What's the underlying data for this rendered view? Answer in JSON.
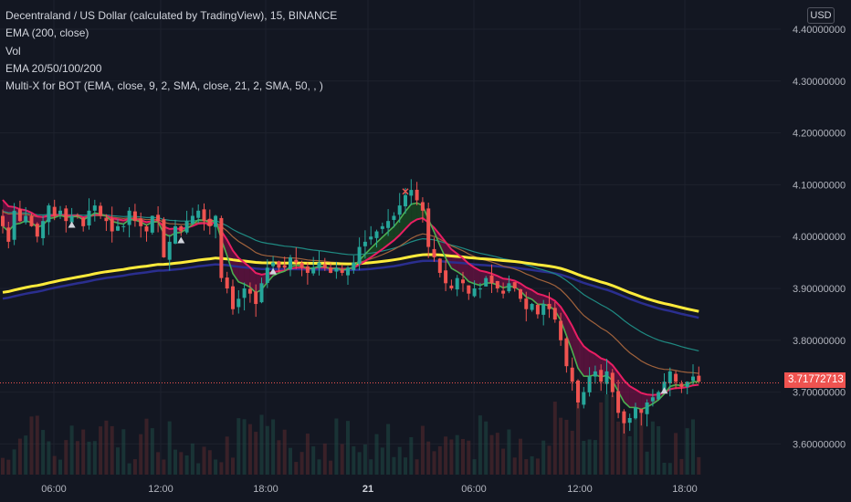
{
  "legend": {
    "title": "Decentraland / US Dollar (calculated by TradingView), 15, BINANCE",
    "ind1": "EMA (200, close)",
    "ind2": "Vol",
    "ind3": "EMA 20/50/100/200",
    "ind4": "Multi-X for BOT (EMA, close, 9, 2, SMA, close, 21, 2, SMA, 50, , )"
  },
  "currency_button": "USD",
  "last_price": "3.71772713",
  "colors": {
    "background": "#131722",
    "grid": "#1e222d",
    "up": "#26a69a",
    "down": "#ef5350",
    "ema200_yellow": "#ffeb3b",
    "ema200_navy": "#2a2e8f",
    "ema100_teal": "#1f8a82",
    "ema50_brown": "#a0623c",
    "ribbon_fast": "#4caf50",
    "ribbon_slow": "#e91e63",
    "text": "#b2b5be"
  },
  "chart_data": {
    "type": "candlestick",
    "symbol": "Decentraland / US Dollar",
    "interval": "15",
    "exchange": "BINANCE",
    "y_ticks": [
      "4.40000000",
      "4.30000000",
      "4.20000000",
      "4.10000000",
      "4.00000000",
      "3.90000000",
      "3.80000000",
      "3.70000000",
      "3.60000000"
    ],
    "x_ticks": [
      "06:00",
      "12:00",
      "18:00",
      "21",
      "06:00",
      "12:00",
      "18:00"
    ],
    "ylim": [
      3.555,
      4.42
    ],
    "last_price": 3.71772713,
    "close": [
      4.02,
      3.99,
      4.05,
      4.03,
      4.04,
      4.02,
      4.0,
      4.03,
      4.06,
      4.04,
      4.05,
      4.03,
      4.04,
      4.04,
      4.02,
      4.05,
      4.06,
      4.04,
      4.03,
      4.01,
      4.02,
      4.02,
      4.05,
      4.03,
      4.02,
      4.01,
      4.04,
      4.03,
      3.96,
      3.99,
      4.02,
      4.01,
      4.03,
      4.04,
      4.05,
      4.03,
      4.02,
      4.04,
      3.92,
      3.9,
      3.86,
      3.88,
      3.9,
      3.89,
      3.87,
      3.91,
      3.94,
      3.95,
      3.94,
      3.94,
      3.96,
      3.95,
      3.94,
      3.93,
      3.94,
      3.95,
      3.94,
      3.93,
      3.94,
      3.93,
      3.94,
      3.95,
      3.98,
      3.99,
      4.0,
      4.01,
      4.02,
      4.03,
      4.04,
      4.06,
      4.08,
      4.09,
      4.07,
      4.05,
      3.98,
      3.96,
      3.93,
      3.91,
      3.9,
      3.92,
      3.91,
      3.89,
      3.9,
      3.9,
      3.92,
      3.91,
      3.9,
      3.89,
      3.91,
      3.9,
      3.88,
      3.86,
      3.87,
      3.85,
      3.87,
      3.86,
      3.84,
      3.8,
      3.75,
      3.72,
      3.68,
      3.7,
      3.73,
      3.74,
      3.72,
      3.74,
      3.7,
      3.66,
      3.64,
      3.65,
      3.67,
      3.66,
      3.68,
      3.69,
      3.7,
      3.72,
      3.74,
      3.72,
      3.71,
      3.72,
      3.73,
      3.72
    ]
  }
}
